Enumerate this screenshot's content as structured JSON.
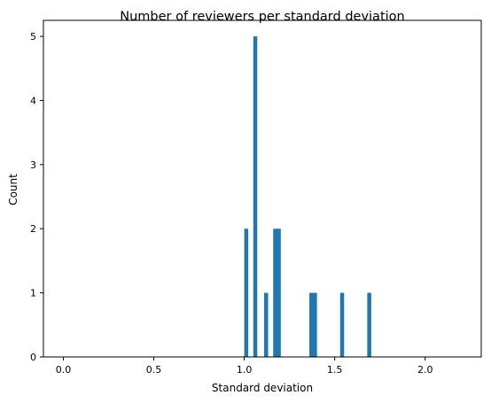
{
  "chart_data": {
    "type": "bar",
    "title": "Number of reviewers per standard deviation",
    "xlabel": "Standard deviation",
    "ylabel": "Count",
    "xlim": [
      -0.11,
      2.31
    ],
    "ylim": [
      0,
      5.25
    ],
    "xticks": [
      0.0,
      0.5,
      1.0,
      1.5,
      2.0
    ],
    "xtick_labels": [
      "0.0",
      "0.5",
      "1.0",
      "1.5",
      "2.0"
    ],
    "yticks": [
      0,
      1,
      2,
      3,
      4,
      5
    ],
    "ytick_labels": [
      "0",
      "1",
      "2",
      "3",
      "4",
      "5"
    ],
    "bin_width": 0.022,
    "bars": [
      {
        "x": 1.0,
        "count": 2
      },
      {
        "x": 1.05,
        "count": 5
      },
      {
        "x": 1.11,
        "count": 1
      },
      {
        "x": 1.16,
        "count": 2
      },
      {
        "x": 1.18,
        "count": 2
      },
      {
        "x": 1.36,
        "count": 1
      },
      {
        "x": 1.38,
        "count": 1
      },
      {
        "x": 1.53,
        "count": 1
      },
      {
        "x": 1.68,
        "count": 1
      }
    ],
    "bar_color": "#1f77b4",
    "grid": false,
    "legend": "none"
  }
}
